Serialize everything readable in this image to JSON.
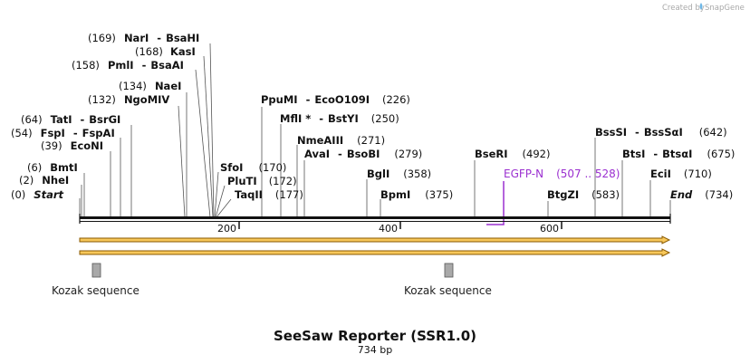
{
  "credit": {
    "prefix": "Created by",
    "brand": "SnapGene"
  },
  "map": {
    "title": "SeeSaw Reporter (SSR1.0)",
    "length_label": "734 bp",
    "total_bp": 734,
    "ticks": [
      "200",
      "400",
      "600"
    ],
    "colors": {
      "backbone": "#111111",
      "arrow_fill": "#f7c75a",
      "arrow_stroke": "#8a5a00",
      "kozak_fill": "#a9a9a9",
      "primer": "#9b30d0"
    }
  },
  "sites": [
    {
      "pos": "(169)",
      "name1": "NarI",
      "sep": "-",
      "name2": "BsaHI"
    },
    {
      "pos": "(168)",
      "name1": "KasI"
    },
    {
      "pos": "(158)",
      "name1": "PmlI",
      "sep": "-",
      "name2": "BsaAI"
    },
    {
      "pos": "(134)",
      "name1": "NaeI"
    },
    {
      "pos": "(132)",
      "name1": "NgoMIV"
    },
    {
      "pos": "(64)",
      "name1": "TatI",
      "sep": "-",
      "name2": "BsrGI"
    },
    {
      "pos": "(54)",
      "name1": "FspI",
      "sep": "-",
      "name2": "FspAI"
    },
    {
      "pos": "(39)",
      "name1": "EcoNI"
    },
    {
      "pos": "(6)",
      "name1": "BmtI"
    },
    {
      "pos": "(2)",
      "name1": "NheI"
    },
    {
      "pos": "(0)",
      "name1": "Start"
    },
    {
      "name1": "SfoI",
      "pos": "(170)"
    },
    {
      "name1": "PluTI",
      "pos": "(172)"
    },
    {
      "name1": "TaqII",
      "pos": "(177)"
    },
    {
      "name1": "PpuMI",
      "sep": "-",
      "name2": "EcoO109I",
      "pos": "(226)"
    },
    {
      "name1": "MflI *",
      "sep": "-",
      "name2": "BstYI",
      "pos": "(250)"
    },
    {
      "name1": "NmeAIII",
      "pos": "(271)"
    },
    {
      "name1": "AvaI",
      "sep": "-",
      "name2": "BsoBI",
      "pos": "(279)"
    },
    {
      "name1": "BglI",
      "pos": "(358)"
    },
    {
      "name1": "BpmI",
      "pos": "(375)"
    },
    {
      "name1": "BseRI",
      "pos": "(492)"
    },
    {
      "name1": "BtgZI",
      "pos": "(583)"
    },
    {
      "name1": "BssSI",
      "sep": "-",
      "name2": "BssSαI",
      "pos": "(642)"
    },
    {
      "name1": "BtsI",
      "sep": "-",
      "name2": "BtsαI",
      "pos": "(675)"
    },
    {
      "name1": "EciI",
      "pos": "(710)"
    },
    {
      "name1": "End",
      "pos": "(734)"
    }
  ],
  "primer": {
    "name": "EGFP-N",
    "range": "(507 .. 528)"
  },
  "features": [
    {
      "name": "Kozak sequence"
    },
    {
      "name": "Kozak sequence"
    }
  ]
}
